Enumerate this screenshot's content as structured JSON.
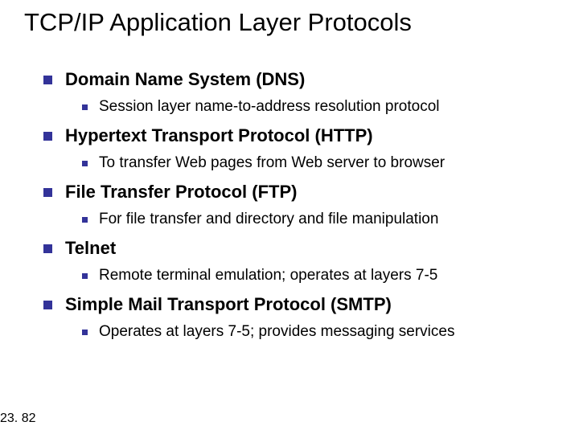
{
  "title": "TCP/IP Application Layer Protocols",
  "items": [
    {
      "label": "Domain Name System (DNS)",
      "sub": [
        "Session layer name-to-address resolution protocol"
      ]
    },
    {
      "label": "Hypertext Transport Protocol (HTTP)",
      "sub": [
        "To transfer Web pages from Web server to browser"
      ]
    },
    {
      "label": "File Transfer Protocol (FTP)",
      "sub": [
        "For file transfer and directory and file manipulation"
      ]
    },
    {
      "label": "Telnet",
      "sub": [
        "Remote terminal emulation; operates at layers 7-5"
      ]
    },
    {
      "label": "Simple Mail Transport Protocol (SMTP)",
      "sub": [
        "Operates at layers 7-5; provides messaging services"
      ]
    }
  ],
  "page_number": "23. 82",
  "colors": {
    "bullet": "#333399",
    "background": "#ffffff",
    "text": "#000000"
  }
}
